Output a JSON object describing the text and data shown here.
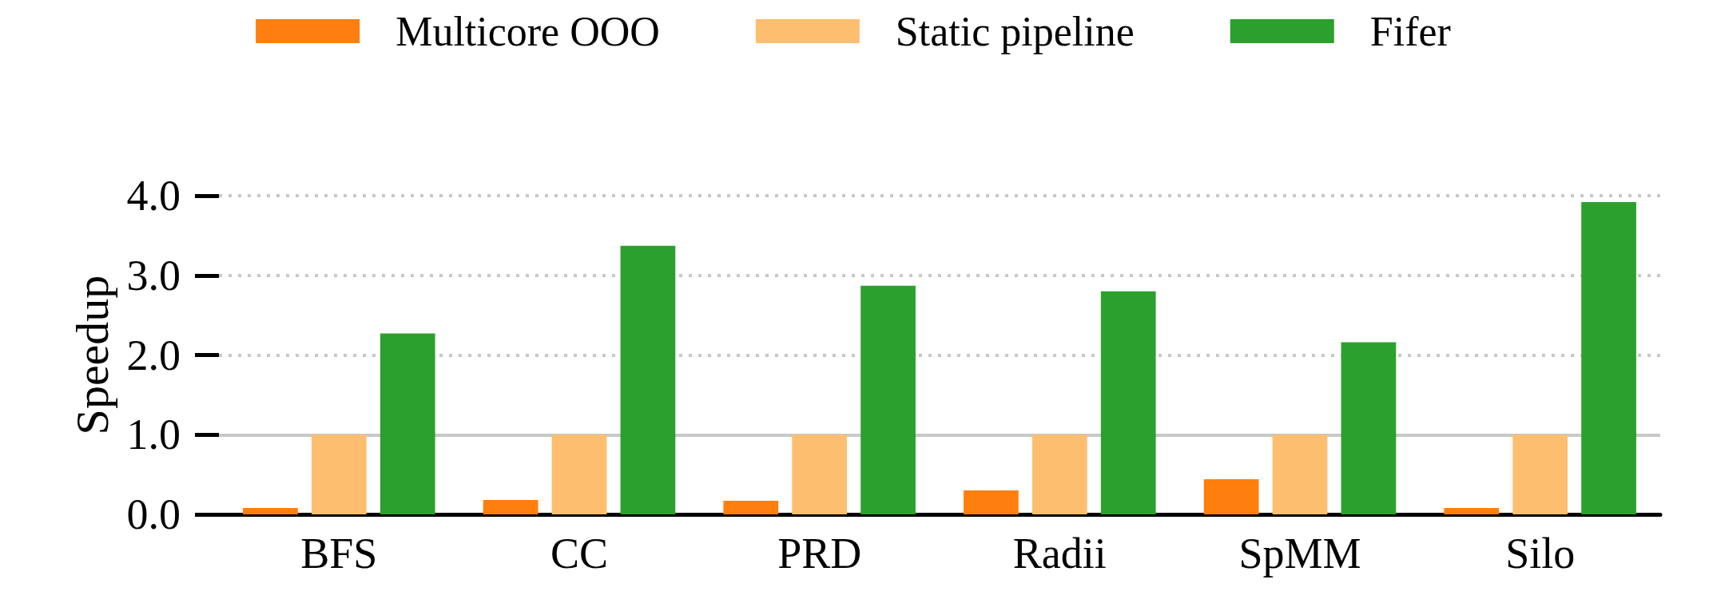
{
  "chart_data": {
    "type": "bar",
    "ylabel": "Speedup",
    "categories": [
      "BFS",
      "CC",
      "PRD",
      "Radii",
      "SpMM",
      "Silo"
    ],
    "series": [
      {
        "name": "Multicore OOO",
        "color": "#ff7f0e",
        "values": [
          0.08,
          0.18,
          0.17,
          0.3,
          0.44,
          0.08
        ]
      },
      {
        "name": "Static pipeline",
        "color": "#fdbf6f",
        "values": [
          1.0,
          1.0,
          1.0,
          1.0,
          1.0,
          1.0
        ]
      },
      {
        "name": "Fifer",
        "color": "#2ca02c",
        "values": [
          2.27,
          3.37,
          2.87,
          2.8,
          2.16,
          3.92
        ]
      }
    ],
    "ylim": [
      0,
      4
    ],
    "yticks": [
      {
        "value": 0,
        "label": "0.0"
      },
      {
        "value": 1,
        "label": "1.0"
      },
      {
        "value": 2,
        "label": "2.0"
      },
      {
        "value": 3,
        "label": "3.0"
      },
      {
        "value": 4,
        "label": "4.0"
      }
    ],
    "grid": "y",
    "legend": "top",
    "ref_lines": [
      {
        "axis": "y",
        "value": 1,
        "color": "#c8c8c8",
        "line_style": "solid"
      }
    ]
  }
}
